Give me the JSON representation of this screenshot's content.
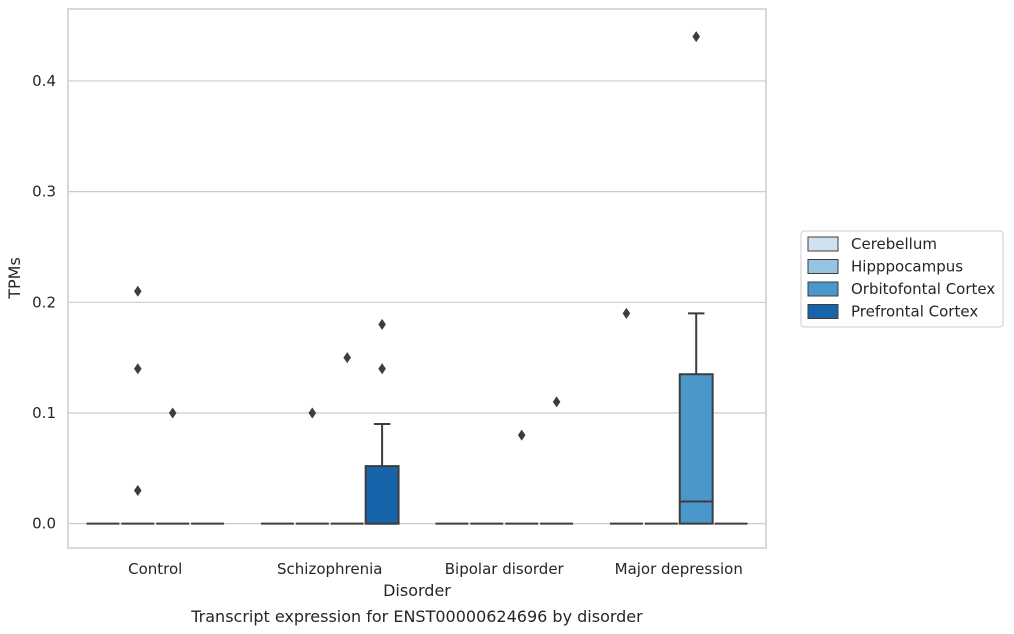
{
  "caption": "Transcript expression for ENST00000624696 by disorder",
  "chart_data": {
    "type": "box",
    "title": "",
    "xlabel": "Disorder",
    "ylabel": "TPMs",
    "categories": [
      "Control",
      "Schizophrenia",
      "Bipolar disorder",
      "Major depression"
    ],
    "ylim": [
      -0.022,
      0.465
    ],
    "yticks": [
      0.0,
      0.1,
      0.2,
      0.3,
      0.4
    ],
    "ytick_labels": [
      "0.0",
      "0.1",
      "0.2",
      "0.3",
      "0.4"
    ],
    "grid": "horizontal",
    "legend_position": "right",
    "series": [
      {
        "name": "Cerebellum",
        "color": "#d0e1f2",
        "boxes": [
          {
            "q1": 0,
            "median": 0,
            "q3": 0,
            "whisker_low": 0,
            "whisker_high": 0,
            "outliers": []
          },
          {
            "q1": 0,
            "median": 0,
            "q3": 0,
            "whisker_low": 0,
            "whisker_high": 0,
            "outliers": []
          },
          {
            "q1": 0,
            "median": 0,
            "q3": 0,
            "whisker_low": 0,
            "whisker_high": 0,
            "outliers": []
          },
          {
            "q1": 0,
            "median": 0,
            "q3": 0,
            "whisker_low": 0,
            "whisker_high": 0,
            "outliers": [
              0.19
            ]
          }
        ]
      },
      {
        "name": "Hipppocampus",
        "color": "#94c4df",
        "boxes": [
          {
            "q1": 0,
            "median": 0,
            "q3": 0,
            "whisker_low": 0,
            "whisker_high": 0,
            "outliers": [
              0.03,
              0.14,
              0.21
            ]
          },
          {
            "q1": 0,
            "median": 0,
            "q3": 0,
            "whisker_low": 0,
            "whisker_high": 0,
            "outliers": [
              0.1
            ]
          },
          {
            "q1": 0,
            "median": 0,
            "q3": 0,
            "whisker_low": 0,
            "whisker_high": 0,
            "outliers": []
          },
          {
            "q1": 0,
            "median": 0,
            "q3": 0,
            "whisker_low": 0,
            "whisker_high": 0,
            "outliers": []
          }
        ]
      },
      {
        "name": "Orbitofontal Cortex",
        "color": "#4a98c9",
        "boxes": [
          {
            "q1": 0,
            "median": 0,
            "q3": 0,
            "whisker_low": 0,
            "whisker_high": 0,
            "outliers": [
              0.1
            ]
          },
          {
            "q1": 0,
            "median": 0,
            "q3": 0,
            "whisker_low": 0,
            "whisker_high": 0,
            "outliers": [
              0.15
            ]
          },
          {
            "q1": 0,
            "median": 0,
            "q3": 0,
            "whisker_low": 0,
            "whisker_high": 0,
            "outliers": [
              0.08
            ]
          },
          {
            "q1": 0,
            "median": 0.02,
            "q3": 0.135,
            "whisker_low": 0,
            "whisker_high": 0.19,
            "outliers": [
              0.44
            ]
          }
        ]
      },
      {
        "name": "Prefrontal Cortex",
        "color": "#1764ab",
        "boxes": [
          {
            "q1": 0,
            "median": 0,
            "q3": 0,
            "whisker_low": 0,
            "whisker_high": 0,
            "outliers": []
          },
          {
            "q1": 0,
            "median": 0,
            "q3": 0.052,
            "whisker_low": 0,
            "whisker_high": 0.09,
            "outliers": [
              0.14,
              0.18
            ]
          },
          {
            "q1": 0,
            "median": 0,
            "q3": 0,
            "whisker_low": 0,
            "whisker_high": 0,
            "outliers": [
              0.11
            ]
          },
          {
            "q1": 0,
            "median": 0,
            "q3": 0,
            "whisker_low": 0,
            "whisker_high": 0,
            "outliers": []
          }
        ]
      }
    ]
  }
}
